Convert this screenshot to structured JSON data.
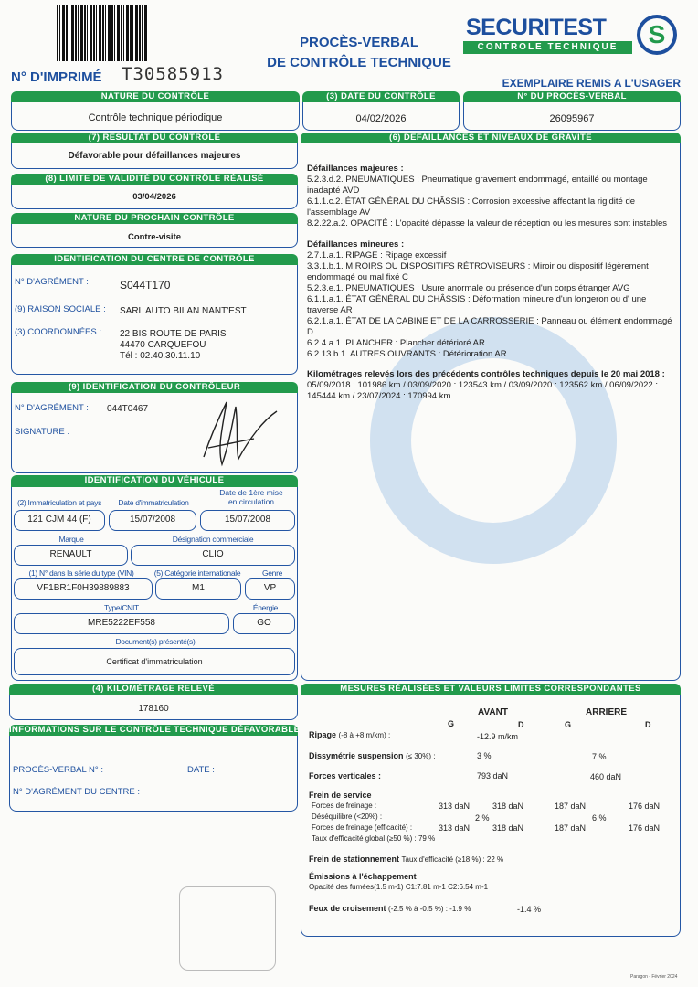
{
  "header": {
    "title_line1": "PROCÈS-VERBAL",
    "title_line2": "DE CONTRÔLE TECHNIQUE",
    "imprime_label": "N° D'IMPRIMÉ",
    "imprime_number": "T30585913",
    "logo_text": "SECURITEST",
    "logo_sub": "CONTROLE TECHNIQUE",
    "exemplaire": "EXEMPLAIRE REMIS A L'USAGER",
    "brand_colors": {
      "green": "#229a4c",
      "blue": "#1d4f9e"
    }
  },
  "top": {
    "nature_label": "NATURE DU CONTRÔLE",
    "nature_value": "Contrôle technique périodique",
    "date_label": "(3) DATE DU CONTRÔLE",
    "date_value": "04/02/2026",
    "pv_label": "N° DU PROCÈS-VERBAL",
    "pv_value": "26095967"
  },
  "result": {
    "label": "(7) RÉSULTAT DU CONTRÔLE",
    "value": "Défavorable pour défaillances majeures"
  },
  "validity": {
    "label": "(8) LIMITE DE VALIDITÉ DU CONTRÔLE RÉALISÉ",
    "value": "03/04/2026"
  },
  "next": {
    "label": "NATURE DU PROCHAIN CONTRÔLE",
    "value": "Contre-visite"
  },
  "centre": {
    "label": "IDENTIFICATION DU CENTRE DE CONTRÔLE",
    "agrement_label": "N° D'AGRÉMENT :",
    "agrement": "S044T170",
    "raison_label": "(9) RAISON SOCIALE :",
    "raison": "SARL AUTO BILAN NANT'EST",
    "coord_label": "(3) COORDONNÉES :",
    "addr1": "22 BIS ROUTE DE PARIS",
    "addr2": "44470 CARQUEFOU",
    "tel": "Tél : 02.40.30.11.10"
  },
  "controleur": {
    "label": "(9) IDENTIFICATION DU CONTRÔLEUR",
    "agrement_label": "N° D'AGRÉMENT :",
    "agrement": "044T0467",
    "signature_label": "SIGNATURE :"
  },
  "vehicle": {
    "label": "IDENTIFICATION DU VÉHICULE",
    "immat_label": "(2) Immatriculation et pays",
    "immat": "121 CJM 44  (F)",
    "date_immat_label": "Date d'immatriculation",
    "date_immat": "15/07/2008",
    "date_mise_label": "Date de 1ère mise en circulation",
    "date_mise": "15/07/2008",
    "marque_label": "Marque",
    "marque": "RENAULT",
    "designation_label": "Désignation commerciale",
    "designation": "CLIO",
    "vin_label": "(1) N° dans la série du type (VIN)",
    "vin": "VF1BR1F0H39889883",
    "cat_label": "(5) Catégorie internationale",
    "cat": "M1",
    "genre_label": "Genre",
    "genre": "VP",
    "type_label": "Type/CNIT",
    "type": "MRE5222EF558",
    "energie_label": "Énergie",
    "energie": "GO",
    "docs_label": "Document(s) présenté(s)",
    "docs": "Certificat d'immatriculation"
  },
  "km": {
    "label": "(4) KILOMÉTRAGE RELEVÉ",
    "value": "178160"
  },
  "defav": {
    "label": "INFORMATIONS SUR LE CONTRÔLE TECHNIQUE DÉFAVORABLE",
    "pv_label": "PROCÈS-VERBAL N° :",
    "date_label": "DATE :",
    "agrement_label": "N° D'AGRÉMENT DU CENTRE :"
  },
  "defaillances": {
    "label": "(6) DÉFAILLANCES ET NIVEAUX DE GRAVITÉ",
    "majeures_title": "Défaillances majeures :",
    "majeures": [
      "5.2.3.d.2. PNEUMATIQUES : Pneumatique gravement endommagé, entaillé ou montage inadapté AVD",
      "6.1.1.c.2. ÉTAT GÉNÉRAL DU CHÂSSIS : Corrosion excessive affectant la rigidité de l'assemblage AV",
      "8.2.22.a.2. OPACITÉ : L'opacité dépasse la valeur de réception ou les mesures sont instables"
    ],
    "mineures_title": "Défaillances mineures :",
    "mineures": [
      "2.7.1.a.1. RIPAGE : Ripage excessif",
      "3.3.1.b.1. MIROIRS OU DISPOSITIFS RÉTROVISEURS : Miroir ou dispositif légèrement endommagé ou mal fixé C",
      "5.2.3.e.1. PNEUMATIQUES : Usure anormale ou présence d'un corps étranger AVG",
      "6.1.1.a.1. ÉTAT GÉNÉRAL DU CHÂSSIS : Déformation mineure d'un longeron ou d' une traverse AR",
      "6.2.1.a.1. ÉTAT DE LA CABINE ET DE LA CARROSSERIE : Panneau ou élément endommagé D",
      "6.2.4.a.1. PLANCHER : Plancher détérioré AR",
      "6.2.13.b.1. AUTRES OUVRANTS : Détérioration AR"
    ],
    "km_title": "Kilométrages relevés lors des précédents contrôles techniques depuis le 20 mai 2018 :",
    "km_history": "05/09/2018 : 101986 km / 03/09/2020 : 123543 km / 03/09/2020 : 123562 km / 06/09/2022 : 145444 km / 23/07/2024 : 170994 km"
  },
  "mesures": {
    "label": "MESURES RÉALISÉES ET VALEURS LIMITES CORRESPONDANTES",
    "avant": "AVANT",
    "arriere": "ARRIERE",
    "g": "G",
    "d": "D",
    "ripage_label": "Ripage",
    "ripage_lim": "(-8 à +8 m/km) :",
    "ripage": "-12.9 m/km",
    "dissym_label": "Dissymétrie suspension",
    "dissym_lim": "(≤ 30%) :",
    "dissym_av": "3 %",
    "dissym_ar": "7 %",
    "fv_label": "Forces verticales :",
    "fv_av": "793 daN",
    "fv_ar": "460 daN",
    "fs_title": "Frein de service",
    "ff_label": "Forces de freinage :",
    "ff": [
      "313 daN",
      "318 daN",
      "187 daN",
      "176 daN"
    ],
    "deseq_label": "Déséquilibre (<20%) :",
    "deseq_av": "2 %",
    "deseq_ar": "6 %",
    "ffe_label": "Forces de freinage (efficacité) :",
    "ffe": [
      "313 daN",
      "318 daN",
      "187 daN",
      "176 daN"
    ],
    "taux_global": "Taux d'efficacité global (≥50 %) : 79 %",
    "fstat_title": "Frein de stationnement",
    "fstat": "Taux d'efficacité (≥18 %) : 22 %",
    "emis_title": "Émissions à l'échappement",
    "opacite": "Opacité des fumées(1.5 m-1) C1:7.81 m-1  C2:6.54 m-1",
    "feux_label": "Feux de croisement",
    "feux": "(-2.5 % à  -0.5 %) : -1.9 %",
    "feux2": "-1.4 %"
  },
  "footer": "Paragon - Février 2024"
}
